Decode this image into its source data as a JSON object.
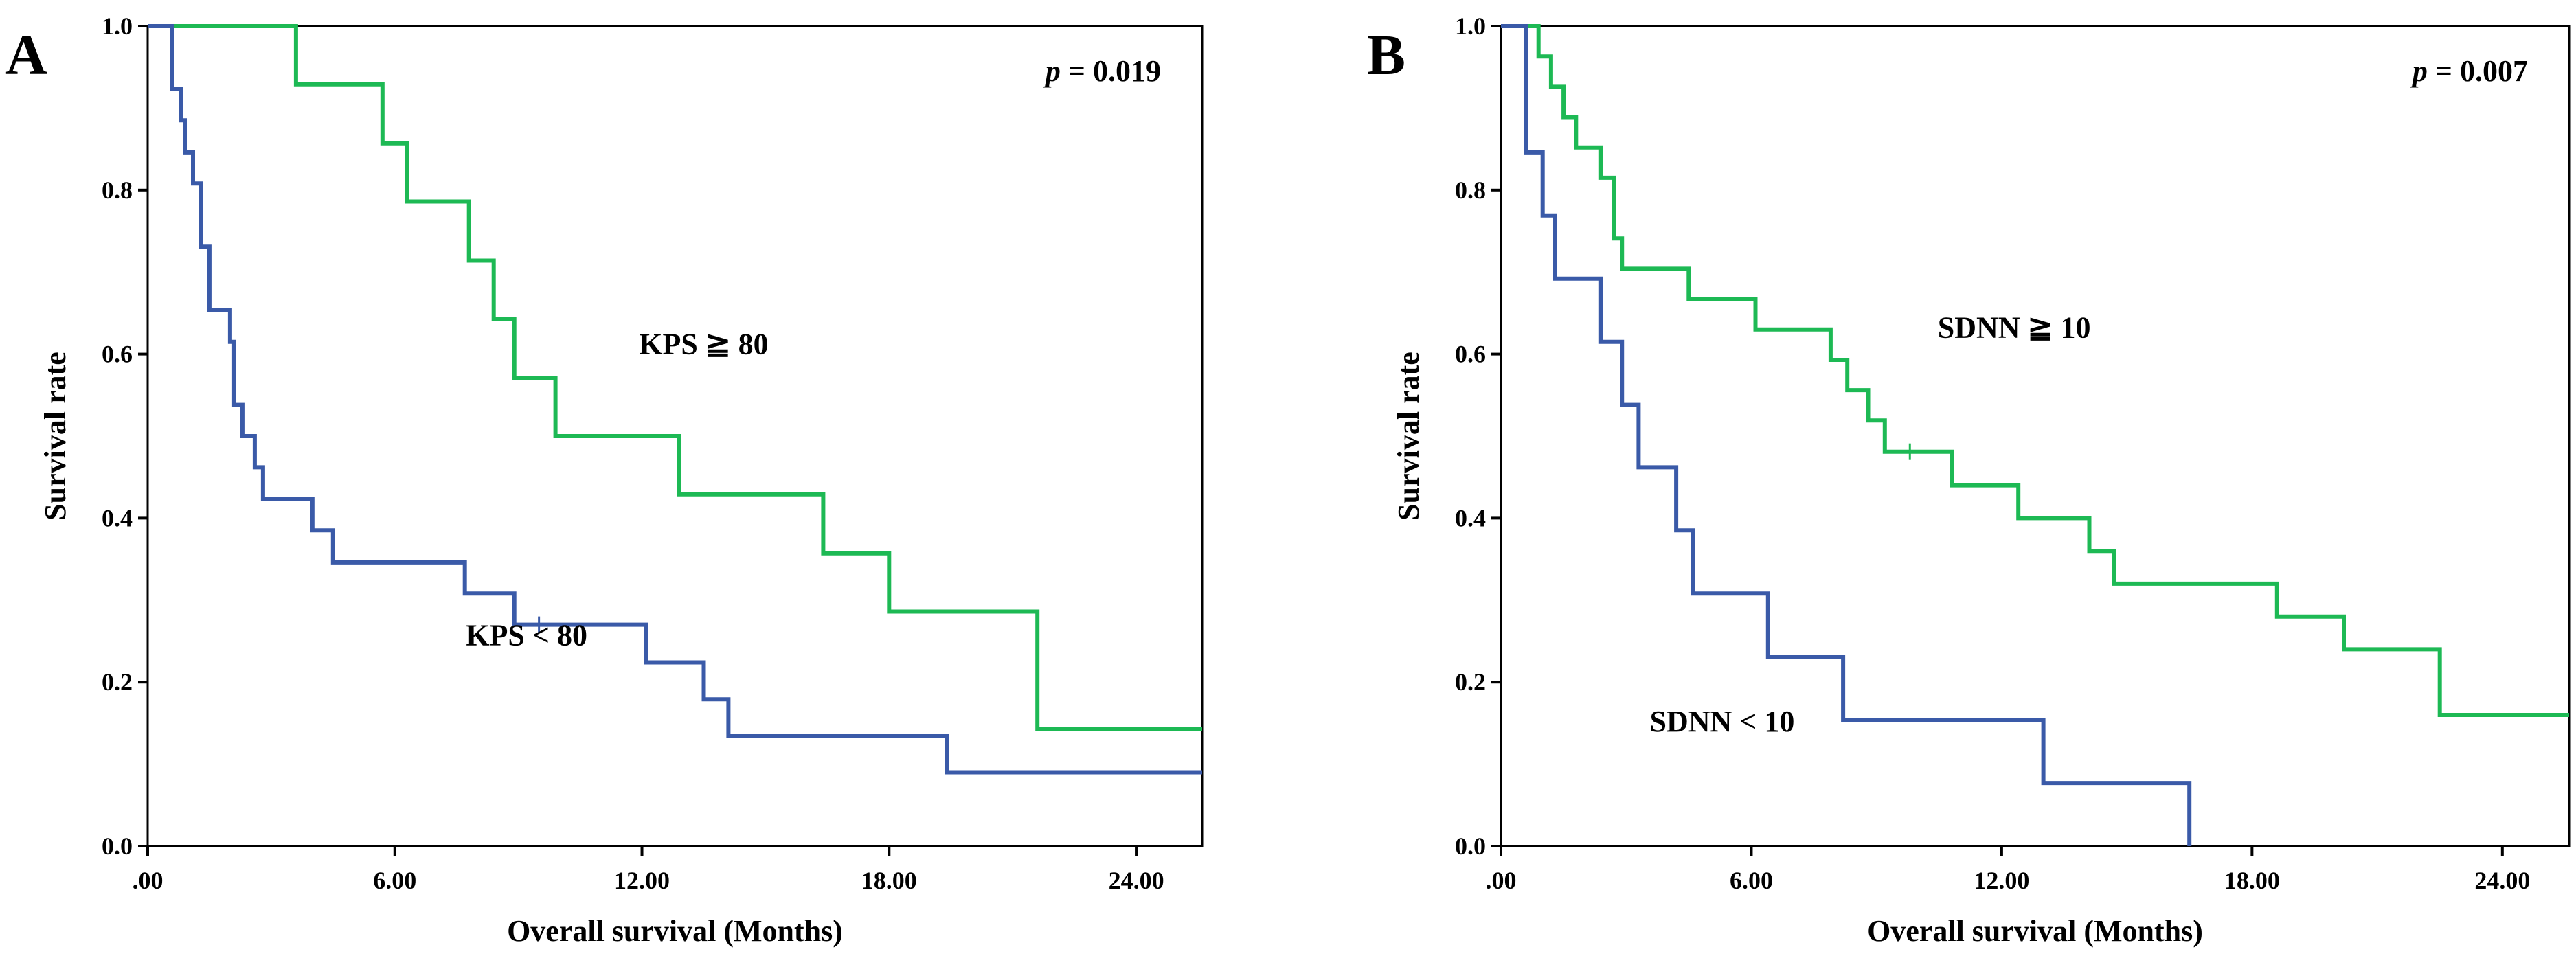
{
  "chart_data": [
    {
      "type": "line",
      "panel_label": "A",
      "title": "",
      "xlabel": "Overall survival (Months)",
      "ylabel": "Survival rate",
      "xlim": [
        0,
        25.6
      ],
      "ylim": [
        0,
        1.0
      ],
      "xticks": [
        0,
        6,
        12,
        18,
        24
      ],
      "xtick_labels": [
        ".00",
        "6.00",
        "12.00",
        "18.00",
        "24.00"
      ],
      "yticks": [
        0,
        0.2,
        0.4,
        0.6,
        0.8,
        1.0
      ],
      "ytick_labels": [
        "0.0",
        "0.2",
        "0.4",
        "0.6",
        "0.8",
        "1.0"
      ],
      "annotation": {
        "p_symbol": "p",
        "p_text": " = 0.019"
      },
      "series": [
        {
          "name": "KPS ≧ 80",
          "color": "#1db954",
          "label_pos": [
            13.5,
            0.6
          ],
          "x": [
            0,
            3.6,
            3.6,
            5.7,
            5.7,
            6.3,
            6.3,
            7.8,
            7.8,
            8.4,
            8.4,
            8.9,
            8.9,
            9.9,
            9.9,
            12.9,
            12.9,
            16.4,
            16.4,
            18.0,
            18.0,
            21.6,
            21.6,
            25.6
          ],
          "y": [
            1.0,
            1.0,
            0.929,
            0.929,
            0.857,
            0.857,
            0.786,
            0.786,
            0.714,
            0.714,
            0.643,
            0.643,
            0.571,
            0.571,
            0.5,
            0.5,
            0.429,
            0.429,
            0.357,
            0.357,
            0.286,
            0.286,
            0.143,
            0.143
          ],
          "censored": []
        },
        {
          "name": "KPS < 80",
          "color": "#3a5aa8",
          "label_pos": [
            9.2,
            0.245
          ],
          "x": [
            0,
            0.6,
            0.6,
            0.8,
            0.8,
            0.9,
            0.9,
            1.1,
            1.1,
            1.3,
            1.3,
            1.5,
            1.5,
            2.0,
            2.0,
            2.1,
            2.1,
            2.3,
            2.3,
            2.6,
            2.6,
            2.8,
            2.8,
            4.0,
            4.0,
            4.5,
            4.5,
            7.7,
            7.7,
            8.9,
            8.9,
            12.1,
            12.1,
            13.5,
            13.5,
            14.1,
            14.1,
            19.4,
            19.4,
            25.6
          ],
          "y": [
            1.0,
            1.0,
            0.923,
            0.923,
            0.885,
            0.885,
            0.846,
            0.846,
            0.808,
            0.808,
            0.731,
            0.731,
            0.654,
            0.654,
            0.615,
            0.615,
            0.538,
            0.538,
            0.5,
            0.5,
            0.462,
            0.462,
            0.423,
            0.423,
            0.385,
            0.385,
            0.346,
            0.346,
            0.308,
            0.308,
            0.27,
            0.27,
            0.224,
            0.224,
            0.179,
            0.179,
            0.134,
            0.134,
            0.09,
            0.09
          ],
          "censored": [
            [
              9.5,
              0.27
            ]
          ]
        }
      ]
    },
    {
      "type": "line",
      "panel_label": "B",
      "title": "",
      "xlabel": "Overall survival (Months)",
      "ylabel": "Survival rate",
      "xlim": [
        0,
        25.6
      ],
      "ylim": [
        0,
        1.0
      ],
      "xticks": [
        0,
        6,
        12,
        18,
        24
      ],
      "xtick_labels": [
        ".00",
        "6.00",
        "12.00",
        "18.00",
        "24.00"
      ],
      "yticks": [
        0,
        0.2,
        0.4,
        0.6,
        0.8,
        1.0
      ],
      "ytick_labels": [
        "0.0",
        "0.2",
        "0.4",
        "0.6",
        "0.8",
        "1.0"
      ],
      "annotation": {
        "p_symbol": "p",
        "p_text": " = 0.007"
      },
      "series": [
        {
          "name": "SDNN ≧ 10",
          "color": "#1db954",
          "label_pos": [
            12.3,
            0.62
          ],
          "x": [
            0,
            0.9,
            0.9,
            1.2,
            1.2,
            1.5,
            1.5,
            1.8,
            1.8,
            2.4,
            2.4,
            2.7,
            2.7,
            2.9,
            2.9,
            4.5,
            4.5,
            6.1,
            6.1,
            7.9,
            7.9,
            8.3,
            8.3,
            8.8,
            8.8,
            9.2,
            9.2,
            9.5,
            9.5,
            10.8,
            10.8,
            12.4,
            12.4,
            14.1,
            14.1,
            14.7,
            14.7,
            18.6,
            18.6,
            20.2,
            20.2,
            22.5,
            22.5,
            25.6
          ],
          "y": [
            1.0,
            1.0,
            0.963,
            0.963,
            0.926,
            0.926,
            0.889,
            0.889,
            0.852,
            0.852,
            0.815,
            0.815,
            0.741,
            0.741,
            0.704,
            0.704,
            0.667,
            0.667,
            0.63,
            0.63,
            0.593,
            0.593,
            0.556,
            0.556,
            0.519,
            0.519,
            0.481,
            0.481,
            0.481,
            0.481,
            0.44,
            0.44,
            0.4,
            0.4,
            0.36,
            0.36,
            0.32,
            0.32,
            0.28,
            0.28,
            0.24,
            0.24,
            0.16,
            0.16
          ],
          "censored": [
            [
              9.8,
              0.481
            ]
          ]
        },
        {
          "name": "SDNN < 10",
          "color": "#3a5aa8",
          "label_pos": [
            5.3,
            0.14
          ],
          "x": [
            0,
            0.6,
            0.6,
            1.0,
            1.0,
            1.3,
            1.3,
            2.4,
            2.4,
            2.9,
            2.9,
            3.3,
            3.3,
            4.2,
            4.2,
            4.6,
            4.6,
            6.4,
            6.4,
            8.2,
            8.2,
            13.0,
            13.0,
            15.8,
            15.8,
            16.5,
            16.5
          ],
          "y": [
            1.0,
            1.0,
            0.846,
            0.846,
            0.769,
            0.769,
            0.692,
            0.692,
            0.615,
            0.615,
            0.538,
            0.538,
            0.462,
            0.462,
            0.385,
            0.385,
            0.308,
            0.308,
            0.231,
            0.231,
            0.154,
            0.154,
            0.077,
            0.077,
            0.077,
            0.077,
            0.0
          ],
          "censored": []
        }
      ]
    }
  ]
}
